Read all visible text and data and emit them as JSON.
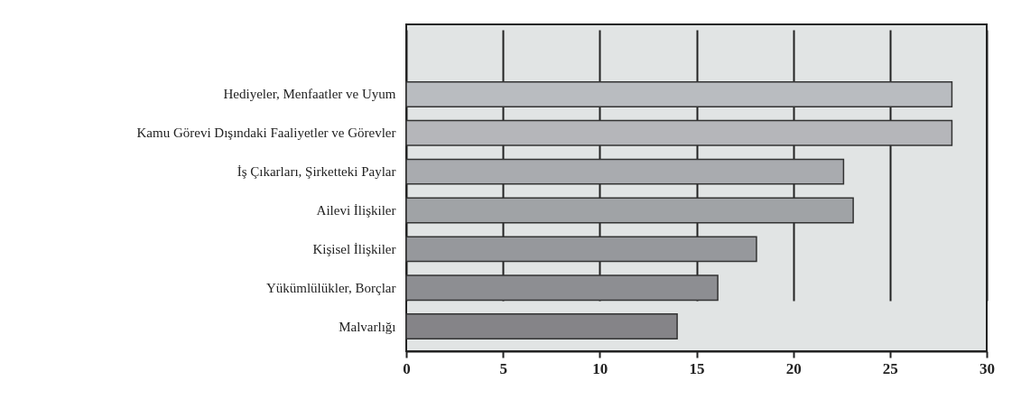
{
  "chart_data": {
    "type": "bar",
    "orientation": "horizontal",
    "categories": [
      "Hediyeler, Menfaatler ve Uyum",
      "Kamu Görevi Dışındaki Faaliyetler ve Görevler",
      "İş Çıkarları, Şirketteki Paylar",
      "Ailevi İlişkiler",
      "Kişisel İlişkiler",
      "Yükümlülükler, Borçlar",
      "Malvarlığı"
    ],
    "values": [
      28.2,
      28.2,
      22.6,
      23.1,
      18.1,
      16.1,
      14.0
    ],
    "colors": [
      "#b9bcc0",
      "#b5b6ba",
      "#a9abaf",
      "#a0a3a6",
      "#96989c",
      "#8d8e92",
      "#858488"
    ],
    "xlim": [
      0,
      30
    ],
    "xticks": [
      0,
      5,
      10,
      15,
      20,
      25,
      30
    ],
    "grid": "x"
  }
}
